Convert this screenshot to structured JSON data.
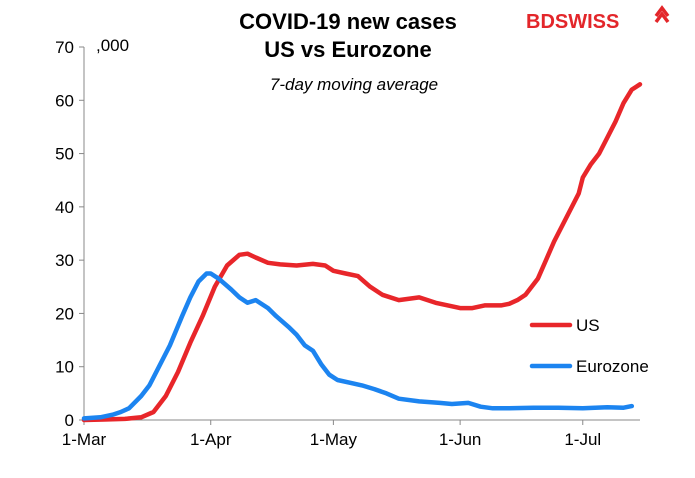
{
  "brand": {
    "name": "BDSWISS",
    "mark": "BD",
    "rest": "SWISS",
    "color": "#e3262a"
  },
  "chart_data": {
    "type": "line",
    "title_line1": "COVID-19 new cases",
    "title_line2": "US vs Eurozone",
    "subtitle": "7-day moving average",
    "unit_label": ",000",
    "xlabel": "",
    "ylabel": "",
    "ylim": [
      0,
      70
    ],
    "yticks": [
      0,
      10,
      20,
      30,
      40,
      50,
      60,
      70
    ],
    "xlim": [
      0,
      136
    ],
    "xticks": [
      {
        "label": "1-Mar",
        "day": 0
      },
      {
        "label": "1-Apr",
        "day": 31
      },
      {
        "label": "1-May",
        "day": 61
      },
      {
        "label": "1-Jun",
        "day": 92
      },
      {
        "label": "1-Jul",
        "day": 122
      }
    ],
    "grid": false,
    "legend_position": "right",
    "series": [
      {
        "name": "US",
        "color": "#e8262a",
        "x": [
          0,
          5,
          10,
          14,
          17,
          20,
          23,
          26,
          29,
          32,
          35,
          38,
          40,
          42,
          45,
          48,
          52,
          56,
          59,
          61,
          64,
          67,
          70,
          73,
          77,
          82,
          86,
          89,
          92,
          95,
          98,
          102,
          104,
          106,
          108,
          111,
          113,
          115,
          117,
          119,
          121,
          122,
          124,
          126,
          128,
          130,
          132,
          134,
          136
        ],
        "values": [
          0,
          0.1,
          0.2,
          0.5,
          1.5,
          4.5,
          9,
          14.5,
          19.5,
          25,
          29,
          31,
          31.2,
          30.5,
          29.5,
          29.2,
          29,
          29.3,
          29,
          28,
          27.5,
          27,
          25,
          23.5,
          22.5,
          23,
          22,
          21.5,
          21,
          21,
          21.5,
          21.5,
          21.8,
          22.5,
          23.5,
          26.5,
          30,
          33.5,
          36.5,
          39.5,
          42.5,
          45.5,
          48,
          50,
          53,
          56,
          59.5,
          62,
          63
        ]
      },
      {
        "name": "Eurozone",
        "color": "#1c84f0",
        "x": [
          0,
          4,
          7,
          9,
          11,
          14,
          16,
          19,
          21,
          24,
          26,
          28,
          30,
          31,
          33,
          36,
          38,
          40,
          42,
          45,
          47,
          50,
          52,
          54,
          56,
          58,
          60,
          62,
          65,
          68,
          71,
          74,
          77,
          82,
          87,
          90,
          94,
          97,
          100,
          104,
          110,
          116,
          122,
          128,
          132,
          134
        ],
        "values": [
          0.3,
          0.5,
          1,
          1.5,
          2.2,
          4.5,
          6.5,
          11,
          14,
          19.5,
          23,
          26,
          27.5,
          27.5,
          26.5,
          24.5,
          23,
          22,
          22.5,
          21,
          19.5,
          17.5,
          16,
          14,
          13,
          10.5,
          8.5,
          7.5,
          7,
          6.5,
          5.8,
          5,
          4,
          3.5,
          3.2,
          3,
          3.2,
          2.5,
          2.2,
          2.2,
          2.3,
          2.3,
          2.2,
          2.4,
          2.3,
          2.6
        ]
      }
    ]
  }
}
